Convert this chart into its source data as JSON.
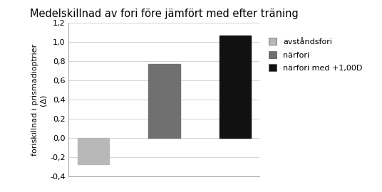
{
  "title": "Medelskillnad av fori före jämfört med efter träning",
  "categories": [
    "avståndsfori",
    "närfori",
    "närfori med +1,00D"
  ],
  "values": [
    -0.27,
    0.77,
    1.07
  ],
  "bar_colors": [
    "#b8b8b8",
    "#707070",
    "#111111"
  ],
  "ylabel_line1": "foriskillnad i prismadioptrier",
  "ylabel_line2": "(Δ)",
  "ylim": [
    -0.4,
    1.2
  ],
  "yticks": [
    -0.4,
    -0.2,
    0.0,
    0.2,
    0.4,
    0.6,
    0.8,
    1.0,
    1.2
  ],
  "legend_labels": [
    "avståndsfori",
    "närfori",
    "närfori med +1,00D"
  ],
  "legend_colors": [
    "#b8b8b8",
    "#707070",
    "#111111"
  ],
  "title_fontsize": 10.5,
  "ylabel_fontsize": 8,
  "tick_fontsize": 8,
  "legend_fontsize": 8,
  "bar_width": 0.45,
  "background_color": "#ffffff"
}
